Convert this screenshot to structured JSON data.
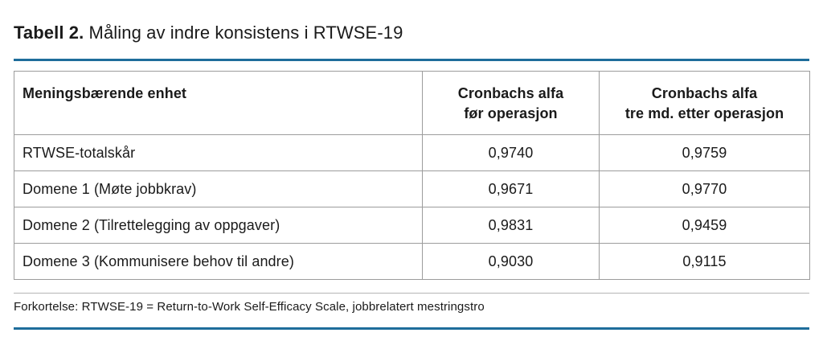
{
  "title": {
    "label": "Tabell 2.",
    "text": " Måling av indre konsistens i RTWSE-19"
  },
  "table": {
    "columns": [
      {
        "line1": "Meningsbærende enhet",
        "line2": ""
      },
      {
        "line1": "Cronbachs alfa",
        "line2": "før operasjon"
      },
      {
        "line1": "Cronbachs alfa",
        "line2": "tre md. etter operasjon"
      }
    ],
    "rows": [
      {
        "label": "RTWSE-totalskår",
        "before": "0,9740",
        "after": "0,9759"
      },
      {
        "label": "Domene 1 (Møte jobbkrav)",
        "before": "0,9671",
        "after": "0,9770"
      },
      {
        "label": "Domene 2 (Tilrettelegging av oppgaver)",
        "before": "0,9831",
        "after": "0,9459"
      },
      {
        "label": "Domene 3 (Kommunisere behov til andre)",
        "before": "0,9030",
        "after": "0,9115"
      }
    ]
  },
  "footnote": "Forkortelse: RTWSE-19 = Return-to-Work Self-Efficacy Scale, jobbrelatert mestringstro",
  "colors": {
    "accent_blue": "#1e6d9b",
    "table_border_gray": "#9c9c9c",
    "footnote_rule_gray": "#b5b5b5",
    "text": "#1a1a1a"
  }
}
